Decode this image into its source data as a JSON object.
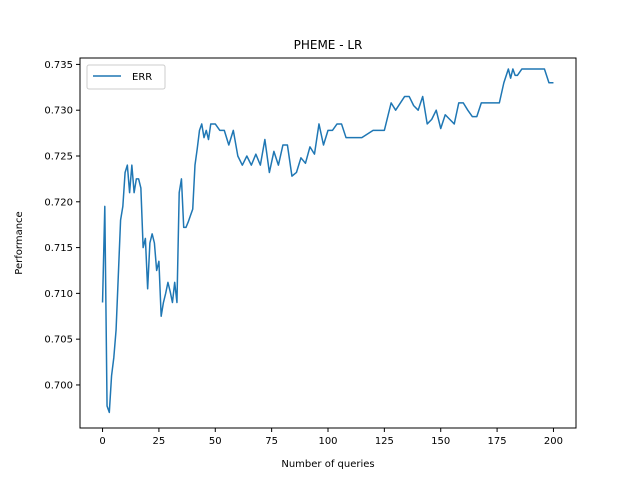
{
  "chart_data": {
    "type": "line",
    "title": "PHEME - LR",
    "xlabel": "Number of queries",
    "ylabel": "Performance",
    "xlim": [
      -10,
      210
    ],
    "ylim": [
      0.6953,
      0.7357
    ],
    "xticks": [
      0,
      25,
      50,
      75,
      100,
      125,
      150,
      175,
      200
    ],
    "yticks": [
      0.7,
      0.705,
      0.71,
      0.715,
      0.72,
      0.725,
      0.73,
      0.735
    ],
    "grid": false,
    "legend_position": "upper-left",
    "series": [
      {
        "name": "ERR",
        "color": "#1f77b4",
        "x": [
          0,
          1,
          2,
          3,
          4,
          5,
          6,
          7,
          8,
          9,
          10,
          11,
          12,
          13,
          14,
          15,
          16,
          17,
          18,
          19,
          20,
          21,
          22,
          23,
          24,
          25,
          26,
          27,
          28,
          29,
          30,
          31,
          32,
          33,
          34,
          35,
          36,
          37,
          38,
          39,
          40,
          41,
          42,
          43,
          44,
          45,
          46,
          47,
          48,
          49,
          50,
          52,
          54,
          56,
          58,
          60,
          62,
          64,
          66,
          68,
          70,
          72,
          74,
          76,
          78,
          80,
          82,
          84,
          86,
          88,
          90,
          92,
          94,
          96,
          98,
          100,
          102,
          104,
          106,
          108,
          110,
          115,
          120,
          125,
          128,
          130,
          134,
          136,
          138,
          140,
          142,
          144,
          146,
          148,
          150,
          152,
          154,
          156,
          158,
          160,
          162,
          164,
          166,
          168,
          170,
          172,
          174,
          176,
          178,
          180,
          181,
          182,
          183,
          184,
          186,
          188,
          190,
          192,
          194,
          196,
          198,
          200
        ],
        "values": [
          0.709,
          0.7195,
          0.6977,
          0.697,
          0.701,
          0.703,
          0.706,
          0.712,
          0.718,
          0.7195,
          0.7232,
          0.724,
          0.721,
          0.724,
          0.721,
          0.7225,
          0.7225,
          0.7215,
          0.715,
          0.716,
          0.7105,
          0.7155,
          0.7165,
          0.7155,
          0.7125,
          0.7135,
          0.7075,
          0.709,
          0.71,
          0.7112,
          0.7102,
          0.709,
          0.7112,
          0.709,
          0.721,
          0.7225,
          0.7172,
          0.7172,
          0.7178,
          0.7185,
          0.7192,
          0.724,
          0.7258,
          0.7278,
          0.7285,
          0.727,
          0.7278,
          0.7268,
          0.7285,
          0.7285,
          0.7285,
          0.7278,
          0.7278,
          0.7262,
          0.7278,
          0.725,
          0.724,
          0.725,
          0.724,
          0.7252,
          0.724,
          0.7268,
          0.7232,
          0.7255,
          0.724,
          0.7262,
          0.7262,
          0.7228,
          0.7232,
          0.7248,
          0.7242,
          0.726,
          0.7252,
          0.7285,
          0.7262,
          0.7278,
          0.7278,
          0.7285,
          0.7285,
          0.727,
          0.727,
          0.727,
          0.7278,
          0.7278,
          0.7308,
          0.73,
          0.7315,
          0.7315,
          0.7305,
          0.73,
          0.7315,
          0.7285,
          0.729,
          0.73,
          0.728,
          0.7295,
          0.729,
          0.7285,
          0.7308,
          0.7308,
          0.73,
          0.7293,
          0.7293,
          0.7308,
          0.7308,
          0.7308,
          0.7308,
          0.7308,
          0.733,
          0.7345,
          0.7335,
          0.7345,
          0.7338,
          0.7338,
          0.7345,
          0.7345,
          0.7345,
          0.7345,
          0.7345,
          0.7345,
          0.733,
          0.733
        ]
      }
    ]
  }
}
